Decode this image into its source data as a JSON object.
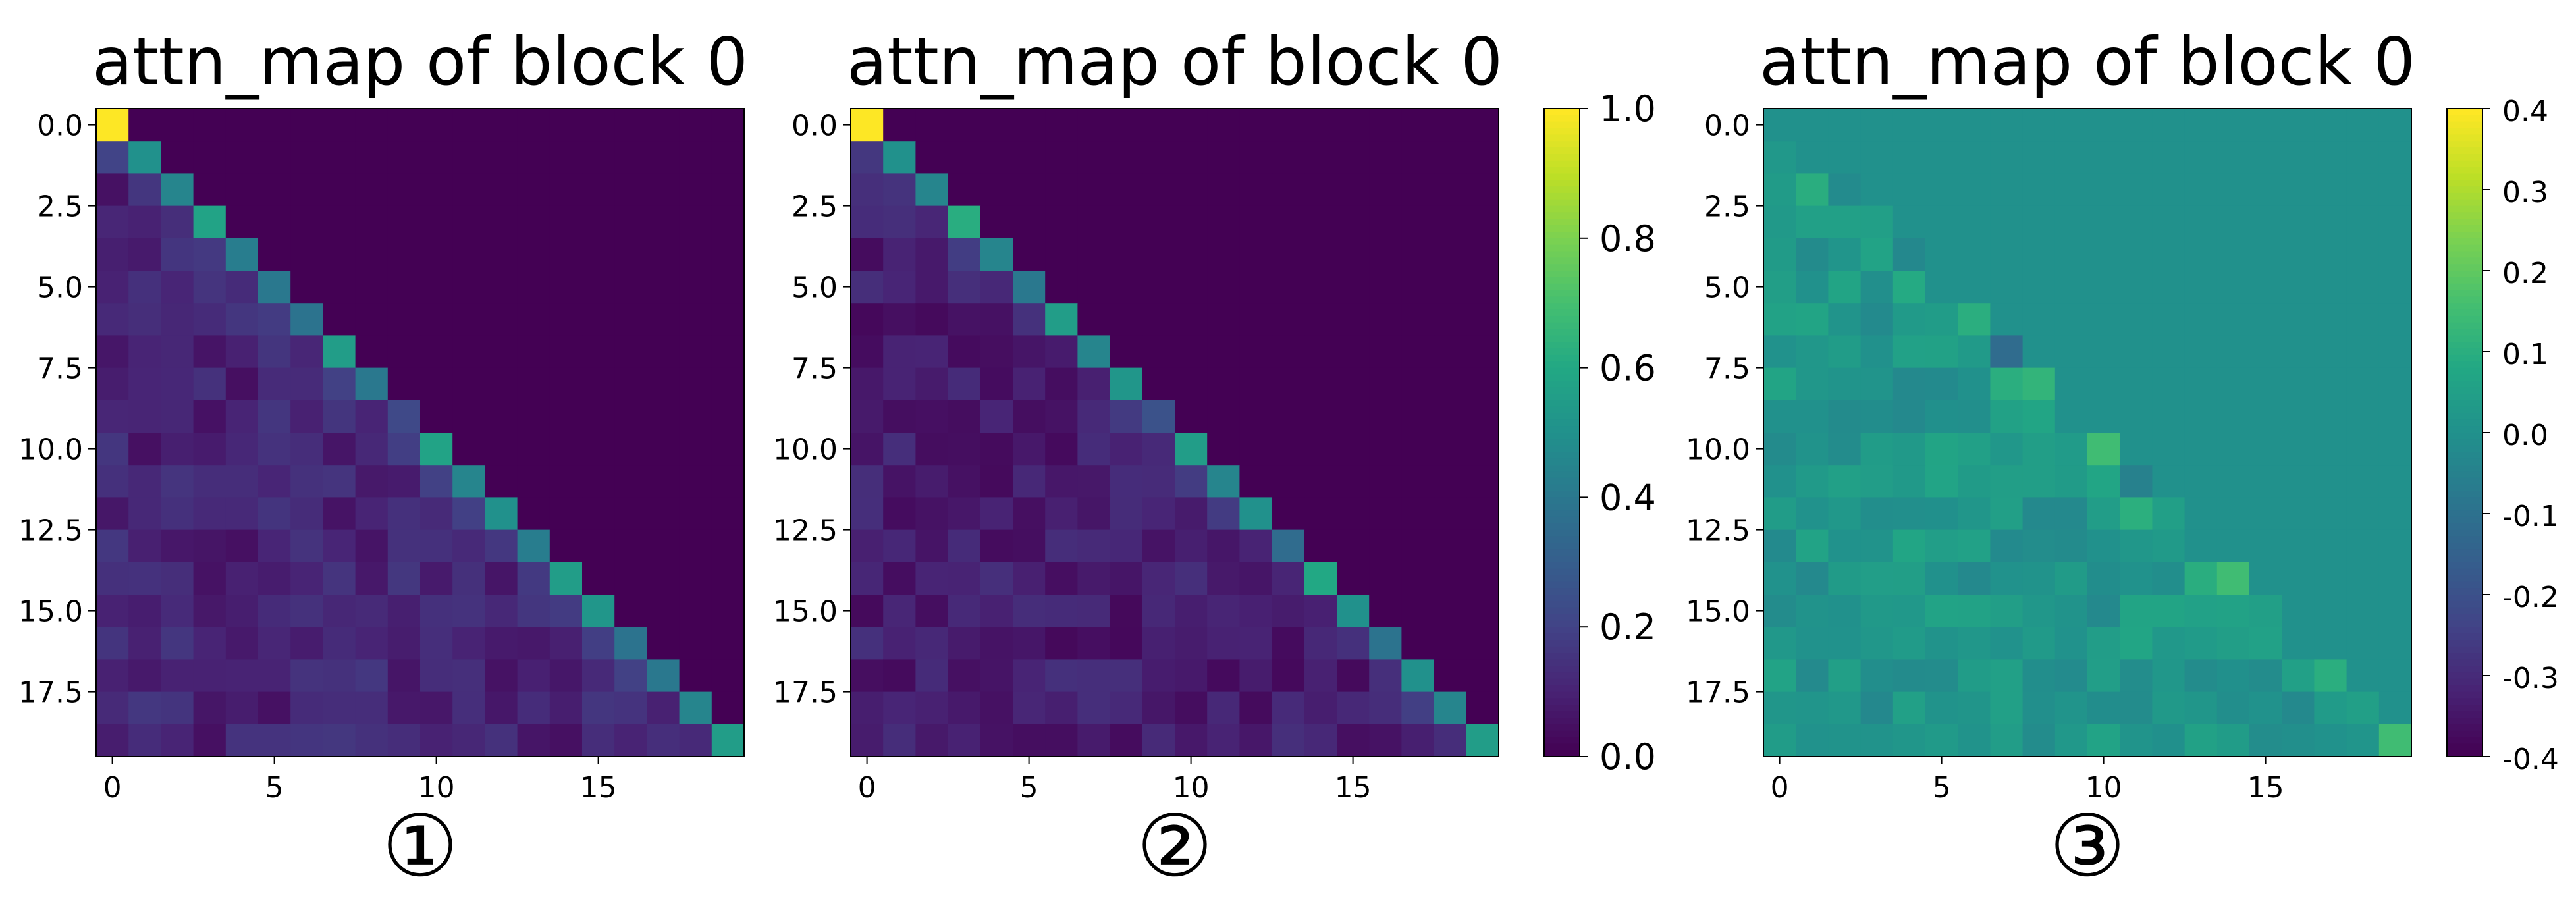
{
  "chart_data": [
    {
      "type": "heatmap",
      "title": "attn_map of block 0",
      "panel_label": "①",
      "rows": 20,
      "cols": 20,
      "x_ticks": [
        "0",
        "5",
        "10",
        "15"
      ],
      "y_ticks": [
        "0.0",
        "2.5",
        "5.0",
        "7.5",
        "10.0",
        "12.5",
        "15.0",
        "17.5"
      ],
      "colorbar": false,
      "vmin": 0.0,
      "vmax": 1.0,
      "colormap": "viridis",
      "diagonal": [
        1.0,
        0.5,
        0.45,
        0.58,
        0.42,
        0.4,
        0.38,
        0.55,
        0.4,
        0.22,
        0.58,
        0.45,
        0.5,
        0.42,
        0.55,
        0.52,
        0.38,
        0.4,
        0.45,
        0.55
      ],
      "below_diagonal_approx": 0.1,
      "upper_triangle": 0.0
    },
    {
      "type": "heatmap",
      "title": "attn_map of block 0",
      "panel_label": "②",
      "rows": 20,
      "cols": 20,
      "x_ticks": [
        "0",
        "5",
        "10",
        "15"
      ],
      "y_ticks": [
        "0.0",
        "2.5",
        "5.0",
        "7.5",
        "10.0",
        "12.5",
        "15.0",
        "17.5"
      ],
      "colorbar": true,
      "colorbar_ticks": [
        "1.0",
        "0.8",
        "0.6",
        "0.4",
        "0.2",
        "0.0"
      ],
      "vmin": 0.0,
      "vmax": 1.0,
      "colormap": "viridis",
      "diagonal": [
        1.0,
        0.5,
        0.45,
        0.62,
        0.45,
        0.4,
        0.55,
        0.45,
        0.52,
        0.25,
        0.55,
        0.45,
        0.5,
        0.35,
        0.6,
        0.5,
        0.38,
        0.5,
        0.45,
        0.55
      ],
      "below_diagonal_approx": 0.08,
      "upper_triangle": 0.0
    },
    {
      "type": "heatmap",
      "title": "attn_map of block 0",
      "panel_label": "③",
      "rows": 20,
      "cols": 20,
      "x_ticks": [
        "0",
        "5",
        "10",
        "15"
      ],
      "y_ticks": [
        "0.0",
        "2.5",
        "5.0",
        "7.5",
        "10.0",
        "12.5",
        "15.0",
        "17.5"
      ],
      "colorbar": true,
      "colorbar_ticks": [
        "0.4",
        "0.3",
        "0.2",
        "0.1",
        "0.0",
        "-0.1",
        "-0.2",
        "-0.3",
        "-0.4"
      ],
      "vmin": -0.4,
      "vmax": 0.4,
      "colormap": "viridis",
      "diagonal": [
        0.0,
        0.0,
        -0.02,
        0.05,
        -0.03,
        0.0,
        0.1,
        -0.12,
        0.12,
        0.0,
        0.15,
        -0.05,
        0.05,
        0.0,
        0.15,
        0.05,
        0.0,
        0.1,
        0.05,
        0.15
      ],
      "below_diagonal_approx": 0.02,
      "upper_triangle": 0.0
    }
  ]
}
